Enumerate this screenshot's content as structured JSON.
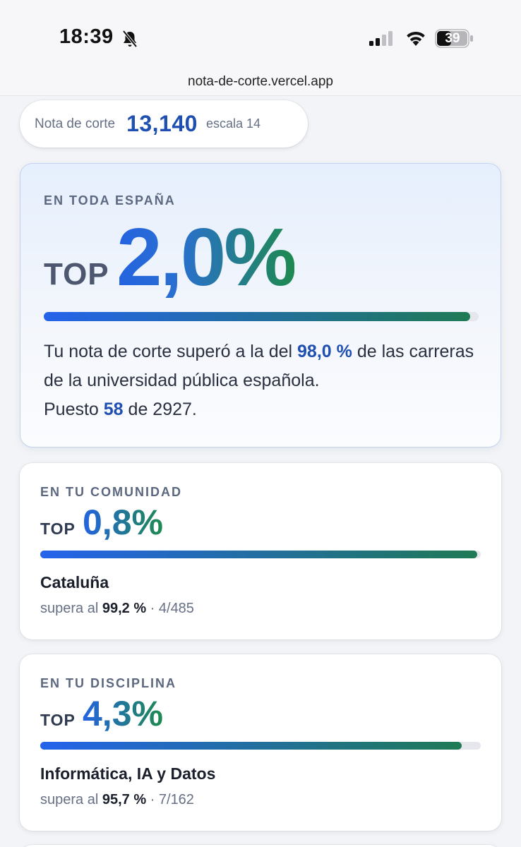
{
  "status_bar": {
    "time": "18:39",
    "battery": "39",
    "icons": [
      "bell-slash-icon",
      "signal-icon",
      "wifi-icon",
      "battery-icon"
    ]
  },
  "url": "nota-de-corte.vercel.app",
  "summary": {
    "label": "Nota de corte",
    "value": "13,140",
    "scale": "escala 14"
  },
  "spain": {
    "eyebrow": "EN TODA ESPAÑA",
    "top_word": "TOP",
    "percent": "2,0%",
    "progress": 0.98,
    "text_before": "Tu nota de corte superó a la del ",
    "surpass_value": "98,0 %",
    "text_after": " de las carreras de la universidad pública española.",
    "rank_prefix": "Puesto ",
    "rank": "58",
    "rank_suffix": " de 2927."
  },
  "community": {
    "eyebrow": "EN TU COMUNIDAD",
    "top_word": "TOP",
    "percent": "0,8%",
    "progress": 0.992,
    "name": "Cataluña",
    "detail_prefix": "supera al ",
    "detail_value": "99,2 %",
    "detail_suffix": " · 4/485"
  },
  "discipline": {
    "eyebrow": "EN TU DISCIPLINA",
    "top_word": "TOP",
    "percent": "4,3%",
    "progress": 0.957,
    "name": "Informática, IA y Datos",
    "detail_prefix": "supera al ",
    "detail_value": "95,7 %",
    "detail_suffix": " · 7/162"
  },
  "colors": {
    "accent": "#1f4fb0",
    "gradient_start": "#2563eb",
    "gradient_end": "#1f7a55"
  }
}
